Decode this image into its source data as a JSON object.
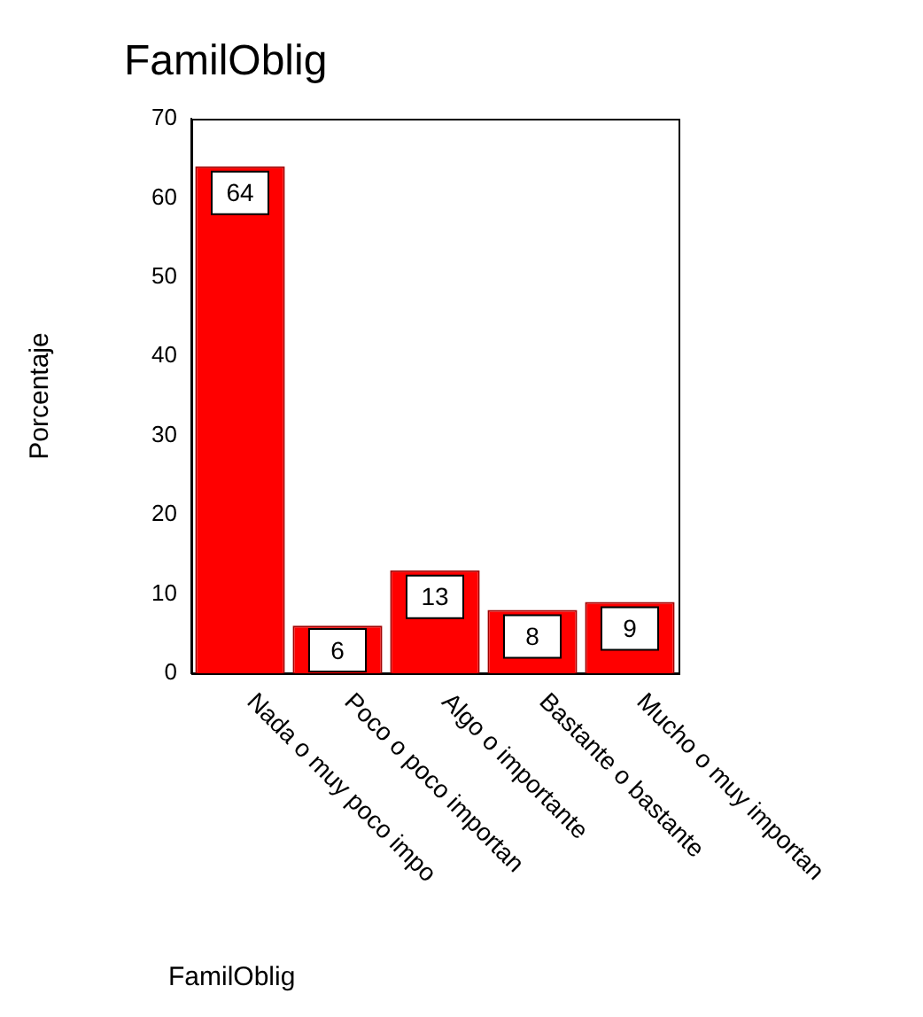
{
  "chart_data": {
    "type": "bar",
    "title": "FamilOblig",
    "xlabel": "FamilOblig",
    "ylabel": "Porcentaje",
    "categories": [
      "Nada o muy poco impo",
      "Poco o poco importan",
      "Algo o importante",
      "Bastante o bastante",
      "Mucho o muy importan"
    ],
    "values": [
      64,
      6,
      13,
      8,
      9
    ],
    "color": "#ff0000",
    "ylim": [
      0,
      70
    ],
    "yticks": [
      0,
      10,
      20,
      30,
      40,
      50,
      60,
      70
    ],
    "grid": false,
    "legend": false,
    "data_labels": true
  }
}
